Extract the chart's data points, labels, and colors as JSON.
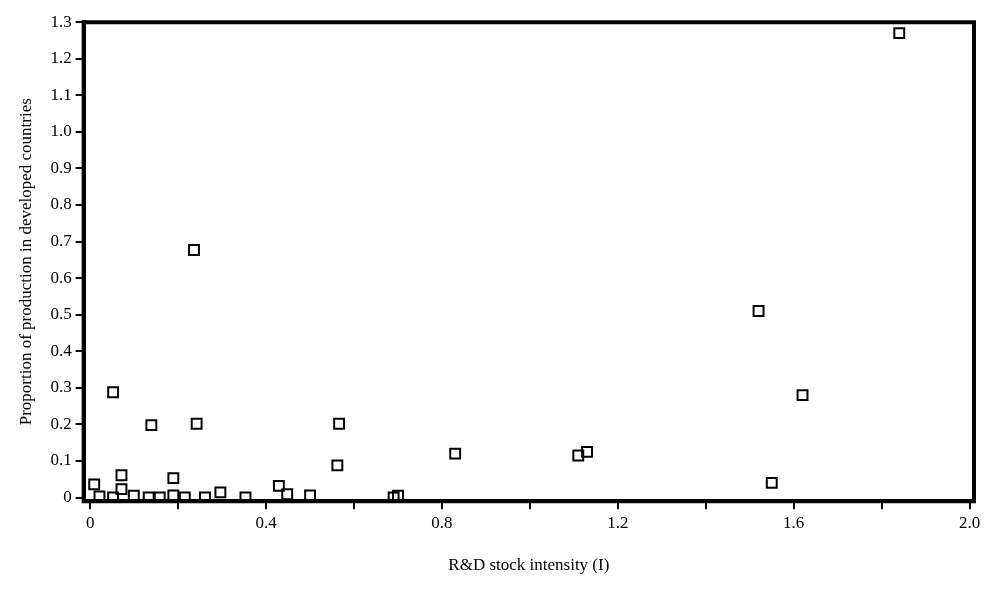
{
  "chart_data": {
    "type": "scatter",
    "xlabel": "R&D stock intensity (I)",
    "ylabel": "Proportion of production in developed countries",
    "x": [
      0.009,
      0.021,
      0.052,
      0.052,
      0.071,
      0.071,
      0.099,
      0.133,
      0.139,
      0.158,
      0.189,
      0.189,
      0.215,
      0.236,
      0.242,
      0.261,
      0.296,
      0.353,
      0.429,
      0.448,
      0.5,
      0.562,
      0.566,
      0.69,
      0.7,
      0.83,
      1.11,
      1.13,
      1.52,
      1.55,
      1.62,
      1.84
    ],
    "series": [
      {
        "color": "#000000",
        "values": [
          0.036,
          0.003,
          0.288,
          0,
          0.061,
          0.023,
          0.005,
          0,
          0.198,
          0,
          0.053,
          0.006,
          0,
          0.677,
          0.202,
          0,
          0.014,
          0,
          0.032,
          0.009,
          0.006,
          0.088,
          0.202,
          0,
          0.005,
          0.12,
          0.115,
          0.125,
          0.51,
          0.04,
          0.28,
          1.27
        ]
      }
    ],
    "xlim": [
      -0.015,
      2.01
    ],
    "ylim": [
      -0.01,
      1.3
    ],
    "xticks": [
      0,
      {
        "value": 0.2,
        "label": null
      },
      0.4,
      {
        "value": 0.6,
        "label": null
      },
      0.8,
      {
        "value": 1.0,
        "label": null
      },
      1.2,
      {
        "value": 1.4,
        "label": null
      },
      1.6,
      {
        "value": 1.8,
        "label": null
      },
      {
        "value": 2.0,
        "label": "2.0"
      }
    ],
    "yticks": [
      0,
      0.1,
      0.2,
      0.3,
      0.4,
      0.5,
      0.6,
      0.7,
      0.8,
      0.9,
      {
        "value": 1.0,
        "label": "1.0"
      },
      1.1,
      1.2,
      1.3
    ],
    "marker": "square",
    "grid": false,
    "legend": false
  }
}
